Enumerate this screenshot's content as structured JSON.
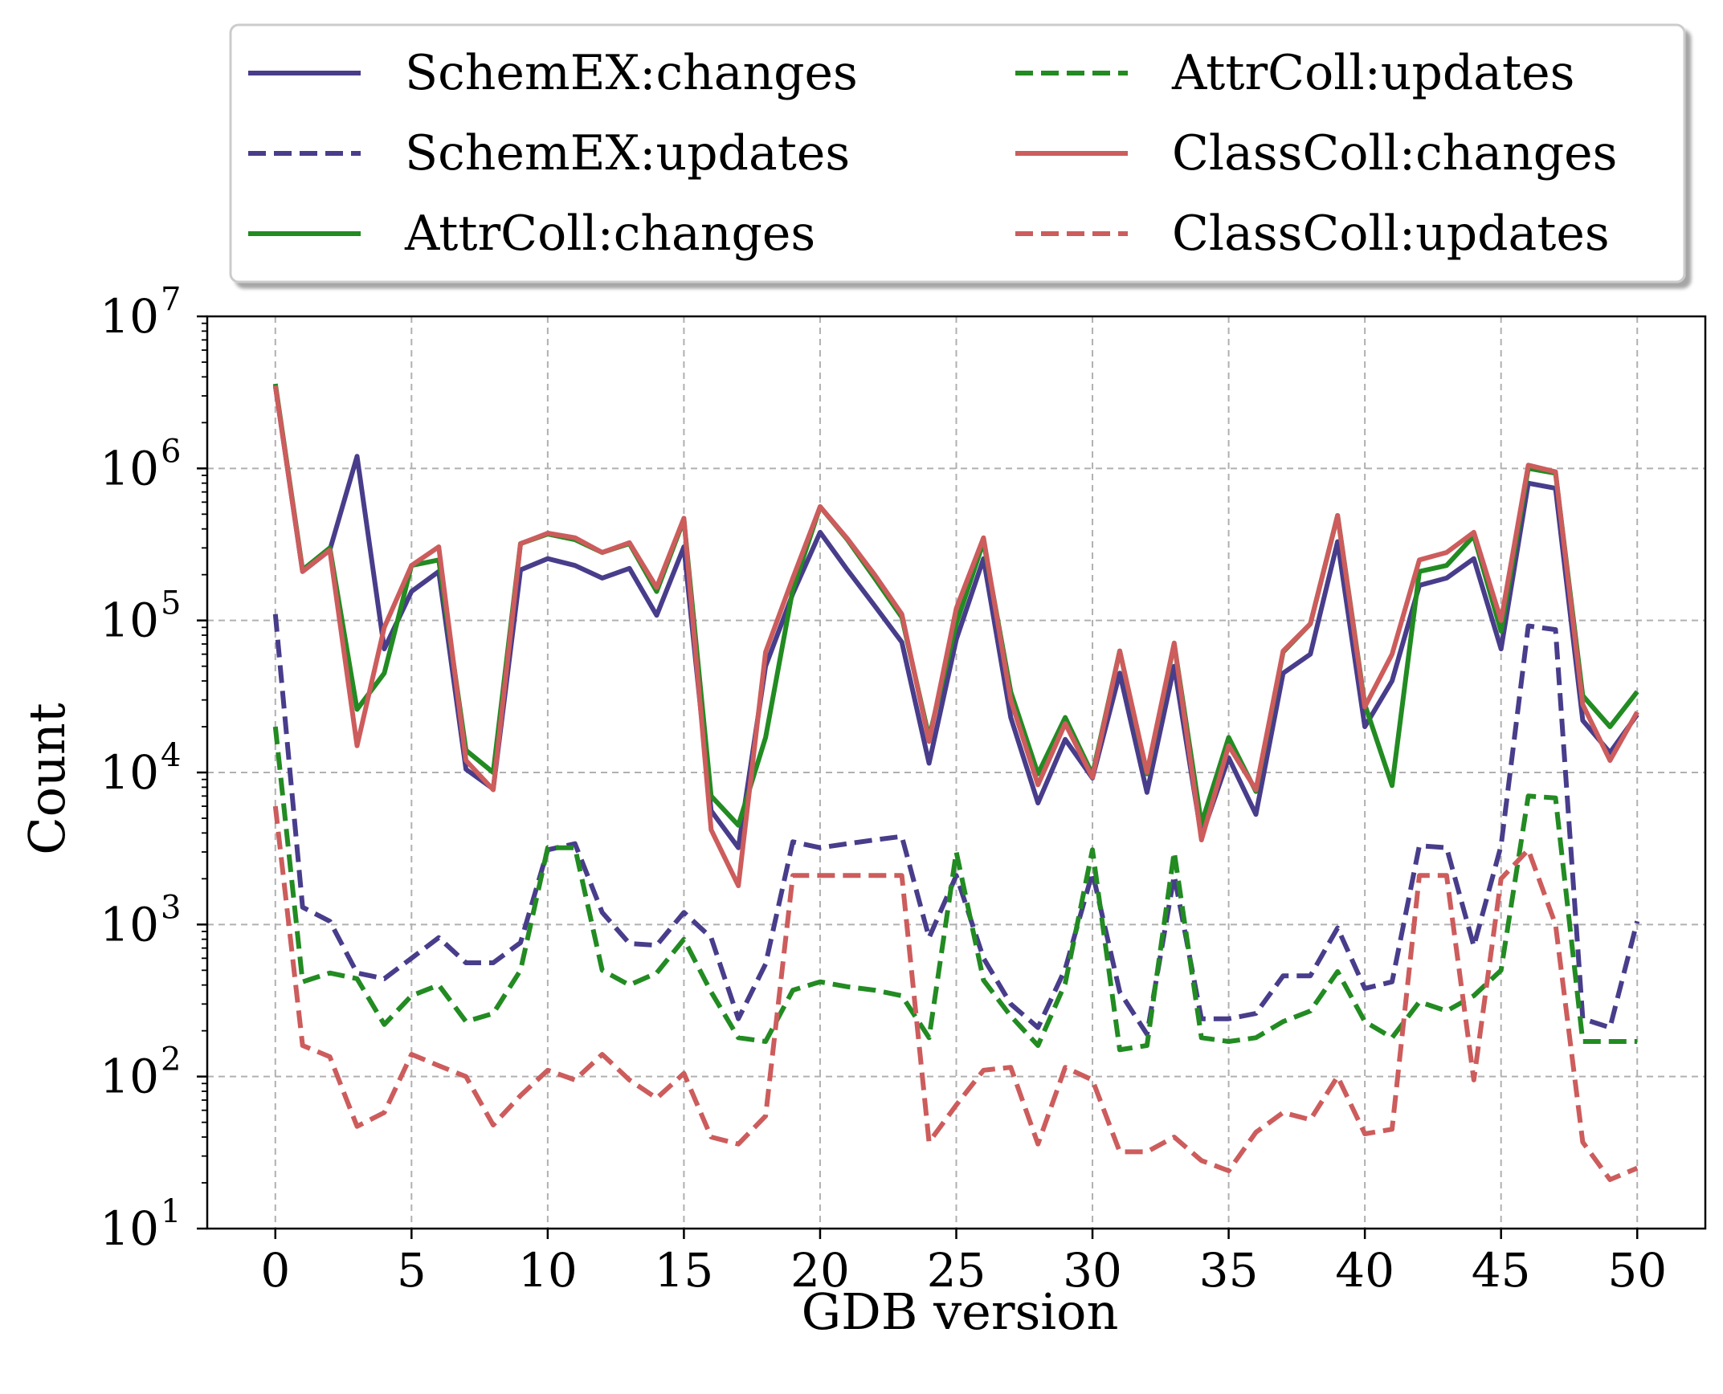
{
  "chart_data": {
    "type": "line",
    "title": "",
    "xlabel": "GDB version",
    "ylabel": "Count",
    "yscale": "log",
    "xlim": [
      -2.5,
      52.5
    ],
    "ylim": [
      10,
      10000000
    ],
    "xticks": [
      0,
      5,
      10,
      15,
      20,
      25,
      30,
      35,
      40,
      45,
      50
    ],
    "yticks": [
      {
        "value": 10,
        "base": "10",
        "exp": "1"
      },
      {
        "value": 100,
        "base": "10",
        "exp": "2"
      },
      {
        "value": 1000,
        "base": "10",
        "exp": "3"
      },
      {
        "value": 10000,
        "base": "10",
        "exp": "4"
      },
      {
        "value": 100000,
        "base": "10",
        "exp": "5"
      },
      {
        "value": 1000000,
        "base": "10",
        "exp": "6"
      },
      {
        "value": 10000000,
        "base": "10",
        "exp": "7"
      }
    ],
    "grid": true,
    "legend_position": "top-center (outside, above plot)",
    "legend_columns": 2,
    "x": [
      0,
      1,
      2,
      3,
      4,
      5,
      6,
      7,
      8,
      9,
      10,
      11,
      12,
      13,
      14,
      15,
      16,
      17,
      18,
      19,
      20,
      21,
      22,
      23,
      24,
      25,
      26,
      27,
      28,
      29,
      30,
      31,
      32,
      33,
      34,
      35,
      36,
      37,
      38,
      39,
      40,
      41,
      42,
      43,
      44,
      45,
      46,
      47,
      48,
      49,
      50
    ],
    "series": [
      {
        "name": "SchemEX:changes",
        "color": "#483d8b",
        "dash": "solid",
        "values": [
          3500000,
          210000,
          290000,
          1200000,
          65000,
          155000,
          210000,
          10500,
          7800,
          215000,
          255000,
          230000,
          190000,
          220000,
          108000,
          305000,
          5600,
          3200,
          50000,
          150000,
          380000,
          215000,
          125000,
          72000,
          11500,
          75000,
          255000,
          23000,
          6300,
          16500,
          9200,
          45000,
          7400,
          50000,
          3800,
          12500,
          5300,
          45000,
          60000,
          330000,
          20000,
          40000,
          170000,
          190000,
          255000,
          65000,
          800000,
          740000,
          22000,
          13500,
          24000
        ]
      },
      {
        "name": "SchemEX:updates",
        "color": "#483d8b",
        "dash": "dashed",
        "values": [
          110000,
          1300,
          1050,
          480,
          440,
          600,
          820,
          560,
          560,
          760,
          3100,
          3400,
          1200,
          750,
          730,
          1200,
          820,
          240,
          550,
          3500,
          3200,
          3400,
          3600,
          3800,
          820,
          2100,
          600,
          300,
          210,
          510,
          2200,
          360,
          190,
          2100,
          240,
          240,
          260,
          460,
          460,
          950,
          380,
          420,
          3300,
          3200,
          720,
          3300,
          92000,
          87000,
          240,
          210,
          1050
        ]
      },
      {
        "name": "AttrColl:changes",
        "color": "#228b22",
        "dash": "solid",
        "values": [
          3600000,
          215000,
          300000,
          26000,
          45000,
          230000,
          250000,
          14000,
          10000,
          320000,
          370000,
          340000,
          280000,
          320000,
          155000,
          460000,
          7000,
          4500,
          17000,
          160000,
          560000,
          340000,
          190000,
          105000,
          17000,
          95000,
          330000,
          34000,
          9800,
          23000,
          9700,
          63000,
          9800,
          70000,
          4600,
          17000,
          7500,
          62000,
          95000,
          490000,
          28000,
          8200,
          210000,
          230000,
          360000,
          85000,
          1000000,
          930000,
          32000,
          20000,
          34000
        ]
      },
      {
        "name": "AttrColl:updates",
        "color": "#228b22",
        "dash": "dashed",
        "values": [
          20000,
          420,
          480,
          440,
          220,
          340,
          400,
          230,
          260,
          500,
          3200,
          3200,
          500,
          400,
          480,
          800,
          360,
          180,
          170,
          370,
          420,
          390,
          370,
          340,
          180,
          3000,
          430,
          250,
          160,
          410,
          3100,
          150,
          160,
          3000,
          180,
          170,
          180,
          230,
          270,
          490,
          230,
          180,
          310,
          270,
          340,
          500,
          7000,
          6800,
          170,
          170,
          170
        ]
      },
      {
        "name": "ClassColl:changes",
        "color": "#cd5c5c",
        "dash": "solid",
        "values": [
          3500000,
          210000,
          290000,
          15000,
          90000,
          230000,
          305000,
          12000,
          7700,
          320000,
          375000,
          350000,
          280000,
          325000,
          165000,
          470000,
          4200,
          1800,
          62000,
          190000,
          560000,
          345000,
          200000,
          110000,
          16000,
          120000,
          350000,
          30000,
          8300,
          21000,
          9300,
          63000,
          10000,
          71000,
          3600,
          15000,
          7700,
          63000,
          95000,
          490000,
          27000,
          60000,
          250000,
          280000,
          380000,
          100000,
          1050000,
          950000,
          28000,
          12000,
          25000
        ]
      },
      {
        "name": "ClassColl:updates",
        "color": "#cd5c5c",
        "dash": "dashed",
        "values": [
          6000,
          160,
          135,
          47,
          58,
          140,
          118,
          100,
          48,
          75,
          110,
          95,
          140,
          95,
          72,
          105,
          40,
          36,
          55,
          2100,
          2100,
          2100,
          2100,
          2100,
          37,
          65,
          110,
          115,
          36,
          115,
          95,
          32,
          32,
          40,
          28,
          24,
          43,
          58,
          52,
          100,
          42,
          45,
          2100,
          2100,
          95,
          2000,
          3100,
          1000,
          37,
          21,
          25
        ]
      }
    ]
  }
}
